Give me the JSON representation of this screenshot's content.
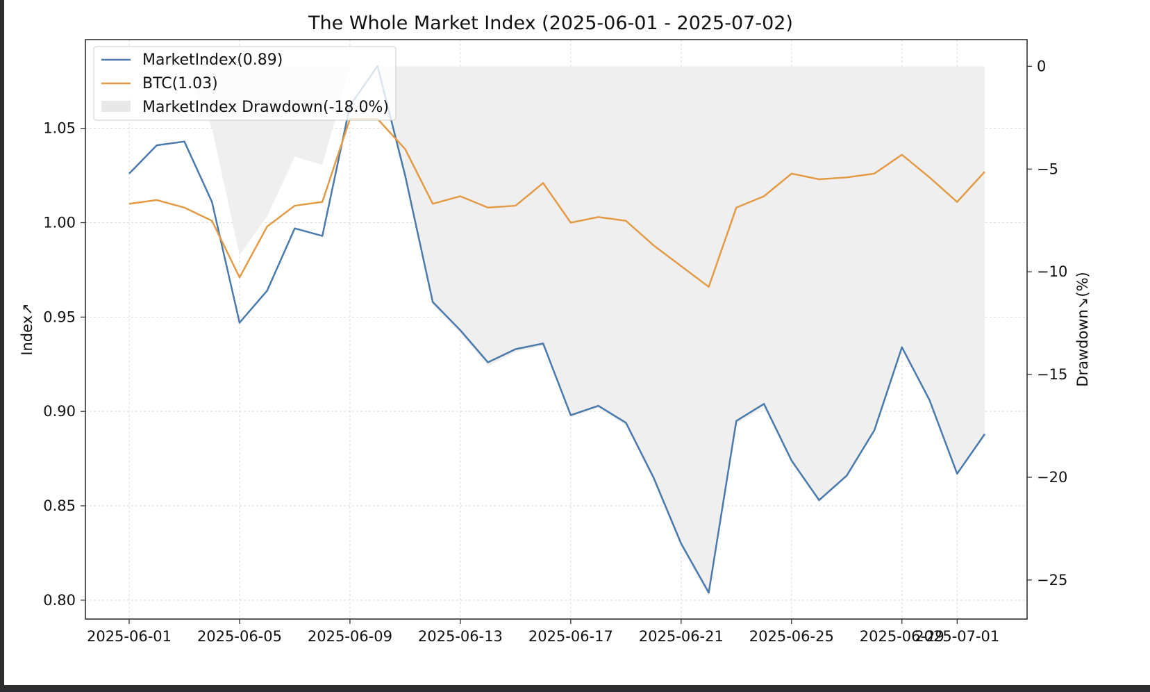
{
  "chart_data": {
    "type": "line",
    "title": "The Whole Market Index (2025-06-01 - 2025-07-02)",
    "ylabel": "Index↗",
    "y2label": "Drawdown↘(%)",
    "xlabel": "",
    "x": [
      "2025-06-01",
      "2025-06-02",
      "2025-06-03",
      "2025-06-04",
      "2025-06-05",
      "2025-06-06",
      "2025-06-07",
      "2025-06-08",
      "2025-06-09",
      "2025-06-10",
      "2025-06-11",
      "2025-06-12",
      "2025-06-13",
      "2025-06-14",
      "2025-06-15",
      "2025-06-16",
      "2025-06-17",
      "2025-06-18",
      "2025-06-19",
      "2025-06-20",
      "2025-06-21",
      "2025-06-22",
      "2025-06-23",
      "2025-06-24",
      "2025-06-25",
      "2025-06-26",
      "2025-06-27",
      "2025-06-28",
      "2025-06-29",
      "2025-06-30",
      "2025-07-01",
      "2025-07-02"
    ],
    "xticks": [
      "2025-06-01",
      "2025-06-05",
      "2025-06-09",
      "2025-06-13",
      "2025-06-17",
      "2025-06-21",
      "2025-06-25",
      "2025-06-29",
      "2025-07-01"
    ],
    "ylim": [
      0.79,
      1.097
    ],
    "yticks": [
      0.8,
      0.85,
      0.9,
      0.95,
      1.0,
      1.05
    ],
    "y2lim": [
      -26.9,
      1.3
    ],
    "y2ticks": [
      0,
      -5,
      -10,
      -15,
      -20,
      -25
    ],
    "grid": true,
    "legend_position": "top-left",
    "series": [
      {
        "name": "MarketIndex(0.89)",
        "color": "#4a7aab",
        "axis": "left",
        "values": [
          1.026,
          1.041,
          1.043,
          1.011,
          0.947,
          0.964,
          0.997,
          0.993,
          1.062,
          1.083,
          1.025,
          0.958,
          0.943,
          0.926,
          0.933,
          0.936,
          0.898,
          0.903,
          0.894,
          0.865,
          0.83,
          0.804,
          0.895,
          0.904,
          0.874,
          0.853,
          0.866,
          0.89,
          0.934,
          0.906,
          0.867,
          0.888
        ]
      },
      {
        "name": "BTC(1.03)",
        "color": "#e39a45",
        "axis": "left",
        "values": [
          1.01,
          1.012,
          1.008,
          1.001,
          0.971,
          0.998,
          1.009,
          1.011,
          1.055,
          1.055,
          1.039,
          1.01,
          1.014,
          1.008,
          1.009,
          1.021,
          1.0,
          1.003,
          1.001,
          0.988,
          0.977,
          0.966,
          1.008,
          1.014,
          1.026,
          1.023,
          1.024,
          1.026,
          1.036,
          1.024,
          1.011,
          1.027
        ]
      },
      {
        "name": "MarketIndex Drawdown(-18.0%)",
        "type": "area",
        "color": "#efefef",
        "axis": "right",
        "values": [
          0,
          0,
          0,
          -3.0,
          -9.2,
          -7.3,
          -4.4,
          -4.8,
          0,
          0,
          -5.6,
          -11.6,
          -13.0,
          -14.6,
          -13.9,
          -13.6,
          -17.1,
          -16.6,
          -17.5,
          -20.2,
          -23.4,
          -25.8,
          -17.4,
          -16.6,
          -19.3,
          -21.2,
          -20.0,
          -17.8,
          -13.8,
          -16.3,
          -19.9,
          -18.0
        ]
      }
    ]
  }
}
